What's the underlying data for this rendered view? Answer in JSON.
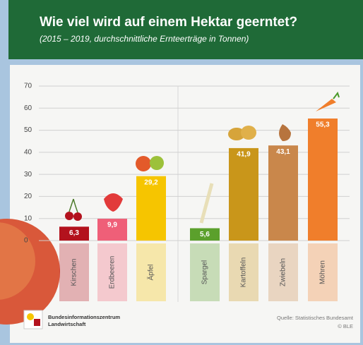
{
  "chart_data": {
    "type": "bar",
    "title": "Wie viel wird auf einem Hektar geerntet?",
    "subtitle": "(2015 – 2019, durchschnittliche Ernteerträge in Tonnen)",
    "categories": [
      "Kirschen",
      "Erdbeeren",
      "Äpfel",
      "Spargel",
      "Kartoffeln",
      "Zwiebeln",
      "Möhren"
    ],
    "values": [
      6.3,
      9.9,
      29.2,
      5.6,
      41.9,
      43.1,
      55.3
    ],
    "value_labels": [
      "6,3",
      "9,9",
      "29,2",
      "5,6",
      "41,9",
      "43,1",
      "55,3"
    ],
    "colors": [
      "#b3121d",
      "#ef5f78",
      "#f6c500",
      "#5ba02c",
      "#c9961a",
      "#c9874b",
      "#f07e2b"
    ],
    "ylim": [
      0,
      70
    ],
    "yticks": [
      0,
      10,
      20,
      30,
      40,
      50,
      60,
      70
    ],
    "grid": true,
    "publisher": [
      "Bundesinformationszentrum",
      "Landwirtschaft"
    ],
    "source": "Quelle: Statistisches Bundesamt",
    "credit": "© BLE"
  }
}
